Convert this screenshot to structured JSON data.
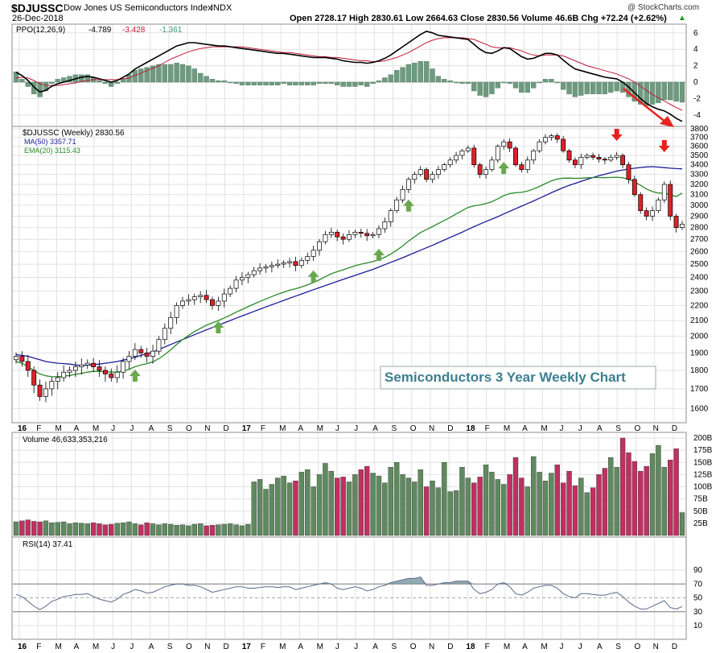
{
  "header": {
    "symbol": "$DJUSSC",
    "name": "Dow Jones US Semiconductors Index",
    "exchange": "INDX",
    "watermark": "@ StockCharts.com",
    "date": "26-Dec-2018",
    "quote": "Open 2728.17  High 2830.61  Low 2664.63  Close 2830.56  Volume 46.6B  Chg +72.24 (+2.62%)",
    "quote_arrow": "▲"
  },
  "ppo_panel": {
    "label": "PPO(12,26,9)",
    "v1": "-4.789",
    "v2": "-3.428",
    "v3": "-1.361",
    "axis": [
      "6",
      "4",
      "2",
      "0",
      "-2",
      "-4"
    ]
  },
  "price_panel": {
    "label": "$DJUSSC (Weekly) 2830.56",
    "ma": "MA(50) 3357.71",
    "ema": "EMA(20) 3115.43",
    "axis": [
      "3800",
      "3700",
      "3600",
      "3500",
      "3400",
      "3300",
      "3200",
      "3100",
      "3000",
      "2900",
      "2800",
      "2700",
      "2600",
      "2500",
      "2400",
      "2300",
      "2200",
      "2100",
      "2000",
      "1900",
      "1800",
      "1700",
      "1600"
    ],
    "annotation": "Semiconductors 3 Year Weekly Chart"
  },
  "volume_panel": {
    "label": "Volume 46,633,353,216",
    "axis": [
      "200B",
      "175B",
      "150B",
      "125B",
      "100B",
      "75B",
      "50B",
      "25B"
    ]
  },
  "rsi_panel": {
    "label": "RSI(14) 37.41",
    "axis": [
      "90",
      "70",
      "50",
      "30",
      "10"
    ]
  },
  "x_axis": [
    "16",
    "F",
    "M",
    "A",
    "M",
    "J",
    "J",
    "A",
    "S",
    "O",
    "N",
    "D",
    "17",
    "F",
    "M",
    "A",
    "M",
    "J",
    "J",
    "A",
    "S",
    "O",
    "N",
    "D",
    "18",
    "F",
    "M",
    "A",
    "M",
    "J",
    "J",
    "A",
    "S",
    "O",
    "N",
    "D"
  ],
  "colors": {
    "up_candle": "#ffffff",
    "down_candle": "#e0202a",
    "ma50": "#1c1c9a",
    "ema20": "#2a8a2a",
    "vol_up": "#5f8a5f",
    "vol_down": "#c03060",
    "ppo_hist": "#6f9a80",
    "signal_arrow_up": "#6aa84f",
    "signal_arrow_down": "#e8221f",
    "annotation_text": "#3d7f8f"
  },
  "chart_data": {
    "type": "candlestick",
    "period": "weekly",
    "range": [
      "2016-01",
      "2018-12-26"
    ],
    "ylim": [
      1500,
      3800
    ],
    "month_ticks": [
      "16",
      "F",
      "M",
      "A",
      "M",
      "J",
      "J",
      "A",
      "S",
      "O",
      "N",
      "D",
      "17",
      "F",
      "M",
      "A",
      "M",
      "J",
      "J",
      "A",
      "S",
      "O",
      "N",
      "D",
      "18",
      "F",
      "M",
      "A",
      "M",
      "J",
      "J",
      "A",
      "S",
      "O",
      "N",
      "D"
    ],
    "close_path": [
      1880,
      1850,
      1800,
      1720,
      1660,
      1700,
      1740,
      1760,
      1790,
      1800,
      1820,
      1830,
      1840,
      1820,
      1800,
      1780,
      1760,
      1790,
      1850,
      1880,
      1920,
      1900,
      1880,
      1910,
      1980,
      2050,
      2120,
      2200,
      2230,
      2240,
      2260,
      2270,
      2240,
      2200,
      2230,
      2280,
      2320,
      2380,
      2400,
      2420,
      2450,
      2470,
      2480,
      2490,
      2500,
      2510,
      2520,
      2490,
      2530,
      2560,
      2610,
      2680,
      2740,
      2760,
      2720,
      2700,
      2740,
      2760,
      2750,
      2730,
      2740,
      2790,
      2850,
      2950,
      3050,
      3150,
      3250,
      3300,
      3350,
      3250,
      3300,
      3350,
      3400,
      3450,
      3500,
      3550,
      3580,
      3400,
      3300,
      3350,
      3450,
      3600,
      3650,
      3580,
      3400,
      3350,
      3450,
      3550,
      3650,
      3700,
      3720,
      3680,
      3550,
      3450,
      3400,
      3480,
      3500,
      3480,
      3460,
      3450,
      3480,
      3500,
      3400,
      3250,
      3100,
      2950,
      2900,
      2950,
      3050,
      3200,
      2900,
      2800,
      2830
    ],
    "close_last": 2830.56,
    "ma50": [
      1890,
      1885,
      1880,
      1870,
      1860,
      1850,
      1845,
      1840,
      1838,
      1835,
      1830,
      1828,
      1830,
      1832,
      1835,
      1840,
      1845,
      1850,
      1858,
      1865,
      1875,
      1885,
      1895,
      1905,
      1920,
      1935,
      1950,
      1965,
      1980,
      1995,
      2010,
      2025,
      2040,
      2055,
      2070,
      2085,
      2100,
      2115,
      2130,
      2145,
      2160,
      2175,
      2190,
      2205,
      2220,
      2235,
      2250,
      2265,
      2280,
      2295,
      2310,
      2325,
      2340,
      2355,
      2370,
      2385,
      2400,
      2415,
      2430,
      2445,
      2460,
      2478,
      2496,
      2514,
      2532,
      2550,
      2570,
      2590,
      2610,
      2630,
      2650,
      2672,
      2694,
      2716,
      2738,
      2760,
      2785,
      2808,
      2830,
      2852,
      2874,
      2896,
      2920,
      2944,
      2968,
      2992,
      3016,
      3040,
      3066,
      3092,
      3118,
      3144,
      3168,
      3190,
      3210,
      3230,
      3250,
      3268,
      3286,
      3302,
      3318,
      3334,
      3346,
      3356,
      3364,
      3372,
      3378,
      3380,
      3376,
      3370,
      3364,
      3360,
      3357.71
    ],
    "ema20": [
      1850,
      1840,
      1820,
      1800,
      1780,
      1770,
      1765,
      1765,
      1768,
      1772,
      1778,
      1784,
      1790,
      1794,
      1794,
      1792,
      1790,
      1790,
      1796,
      1806,
      1820,
      1830,
      1838,
      1848,
      1866,
      1890,
      1918,
      1950,
      1980,
      2005,
      2030,
      2050,
      2070,
      2085,
      2100,
      2117,
      2135,
      2155,
      2173,
      2192,
      2210,
      2228,
      2245,
      2262,
      2278,
      2292,
      2307,
      2317,
      2330,
      2345,
      2362,
      2382,
      2405,
      2427,
      2443,
      2457,
      2473,
      2488,
      2500,
      2510,
      2520,
      2535,
      2554,
      2580,
      2610,
      2645,
      2685,
      2720,
      2757,
      2782,
      2808,
      2835,
      2862,
      2890,
      2920,
      2950,
      2980,
      2995,
      3003,
      3015,
      3033,
      3060,
      3090,
      3110,
      3118,
      3122,
      3135,
      3155,
      3180,
      3208,
      3234,
      3254,
      3262,
      3263,
      3260,
      3262,
      3266,
      3268,
      3268,
      3267,
      3269,
      3272,
      3266,
      3250,
      3225,
      3190,
      3155,
      3130,
      3115,
      3115,
      3098,
      3080,
      3115.43
    ],
    "ppo": [
      1.2,
      0.8,
      0.2,
      -0.6,
      -1.2,
      -1.0,
      -0.5,
      -0.2,
      0.0,
      0.2,
      0.4,
      0.6,
      0.7,
      0.6,
      0.4,
      0.2,
      0.0,
      0.2,
      0.6,
      1.0,
      1.6,
      2.0,
      2.4,
      2.8,
      3.2,
      3.6,
      4.0,
      4.4,
      4.6,
      4.8,
      4.8,
      4.7,
      4.6,
      4.5,
      4.4,
      4.4,
      4.3,
      4.2,
      4.1,
      4.0,
      3.9,
      3.8,
      3.7,
      3.6,
      3.5,
      3.5,
      3.4,
      3.3,
      3.2,
      3.1,
      3.0,
      3.0,
      3.0,
      2.9,
      2.8,
      2.6,
      2.5,
      2.4,
      2.4,
      2.3,
      2.4,
      2.6,
      2.9,
      3.3,
      3.8,
      4.3,
      4.8,
      5.3,
      5.8,
      6.2,
      6.0,
      5.7,
      5.6,
      5.5,
      5.4,
      5.3,
      5.2,
      4.6,
      4.0,
      3.6,
      3.5,
      3.8,
      4.2,
      4.1,
      3.6,
      3.1,
      2.8,
      2.9,
      3.2,
      3.5,
      3.5,
      3.3,
      2.7,
      2.1,
      1.6,
      1.4,
      1.2,
      1.0,
      0.8,
      0.6,
      0.5,
      0.4,
      0.0,
      -0.6,
      -1.3,
      -2.0,
      -2.6,
      -3.0,
      -3.3,
      -3.5,
      -3.9,
      -4.4,
      -4.789
    ],
    "ppo_signal": [
      0.5,
      0.6,
      0.5,
      0.2,
      -0.2,
      -0.4,
      -0.4,
      -0.4,
      -0.3,
      -0.2,
      -0.1,
      0.1,
      0.2,
      0.3,
      0.3,
      0.3,
      0.3,
      0.3,
      0.4,
      0.5,
      0.8,
      1.1,
      1.4,
      1.7,
      2.0,
      2.4,
      2.8,
      3.1,
      3.4,
      3.7,
      3.9,
      4.1,
      4.2,
      4.3,
      4.3,
      4.3,
      4.3,
      4.3,
      4.3,
      4.2,
      4.1,
      4.0,
      3.9,
      3.8,
      3.7,
      3.6,
      3.6,
      3.5,
      3.4,
      3.3,
      3.2,
      3.1,
      3.1,
      3.0,
      3.0,
      2.9,
      2.8,
      2.7,
      2.6,
      2.6,
      2.5,
      2.5,
      2.6,
      2.8,
      3.0,
      3.3,
      3.6,
      4.0,
      4.4,
      4.8,
      5.1,
      5.3,
      5.4,
      5.4,
      5.4,
      5.4,
      5.3,
      5.2,
      4.9,
      4.6,
      4.3,
      4.2,
      4.2,
      4.2,
      4.0,
      3.8,
      3.5,
      3.3,
      3.2,
      3.3,
      3.3,
      3.3,
      3.2,
      2.9,
      2.6,
      2.3,
      2.0,
      1.8,
      1.6,
      1.4,
      1.2,
      1.0,
      0.7,
      0.4,
      0.0,
      -0.5,
      -1.0,
      -1.5,
      -1.9,
      -2.3,
      -2.7,
      -3.1,
      -3.428
    ],
    "ppo_hist_last": -1.361,
    "rsi": [
      55,
      52,
      45,
      38,
      33,
      38,
      45,
      48,
      52,
      53,
      55,
      55,
      56,
      52,
      48,
      46,
      44,
      48,
      55,
      58,
      62,
      60,
      57,
      58,
      62,
      66,
      68,
      70,
      70,
      68,
      68,
      66,
      62,
      58,
      60,
      62,
      64,
      66,
      66,
      64,
      64,
      65,
      66,
      66,
      65,
      66,
      66,
      62,
      64,
      66,
      68,
      70,
      72,
      70,
      64,
      62,
      64,
      66,
      64,
      60,
      62,
      66,
      68,
      72,
      74,
      76,
      78,
      78,
      80,
      68,
      68,
      70,
      72,
      72,
      74,
      74,
      74,
      62,
      56,
      58,
      62,
      70,
      72,
      66,
      56,
      54,
      58,
      64,
      66,
      68,
      68,
      64,
      56,
      52,
      50,
      56,
      56,
      55,
      54,
      54,
      56,
      58,
      52,
      44,
      38,
      34,
      34,
      38,
      42,
      46,
      36,
      34,
      37.41
    ],
    "volume_B": [
      28,
      30,
      32,
      29,
      28,
      30,
      26,
      27,
      28,
      24,
      26,
      25,
      24,
      26,
      24,
      22,
      23,
      25,
      26,
      28,
      24,
      22,
      26,
      24,
      22,
      24,
      23,
      21,
      22,
      20,
      23,
      24,
      20,
      21,
      22,
      23,
      24,
      22,
      20,
      23,
      110,
      115,
      95,
      105,
      118,
      122,
      108,
      112,
      130,
      135,
      100,
      125,
      148,
      132,
      118,
      120,
      110,
      125,
      135,
      142,
      128,
      122,
      108,
      140,
      150,
      125,
      118,
      110,
      135,
      100,
      112,
      98,
      150,
      90,
      92,
      140,
      118,
      108,
      120,
      145,
      130,
      115,
      105,
      125,
      160,
      118,
      100,
      162,
      130,
      112,
      128,
      145,
      108,
      132,
      102,
      118,
      88,
      98,
      125,
      138,
      160,
      140,
      200,
      170,
      152,
      132,
      142,
      168,
      185,
      140,
      155,
      178,
      47
    ],
    "annotations": [
      "Semiconductors 3 Year Weekly Chart"
    ]
  }
}
